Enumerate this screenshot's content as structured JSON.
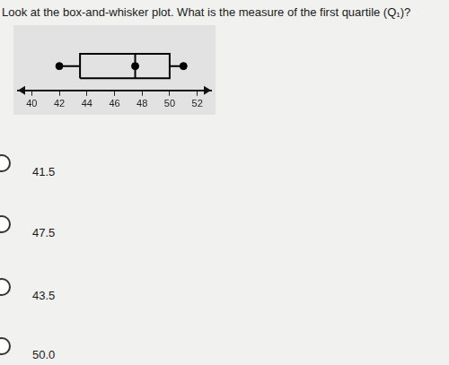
{
  "question": "Look at the box-and-whisker plot. What is the measure of the first quartile (Q₁)?",
  "chart_data": {
    "type": "box",
    "orientation": "horizontal",
    "stats": {
      "min": 42,
      "q1": 43.5,
      "median": 47.5,
      "q3": 50,
      "max": 51
    },
    "color": "#000000",
    "xlim": [
      39,
      53
    ],
    "xticks": [
      40,
      42,
      44,
      46,
      48,
      50,
      52
    ],
    "grid": false
  },
  "options": [
    "41.5",
    "47.5",
    "43.5",
    "50.0"
  ]
}
